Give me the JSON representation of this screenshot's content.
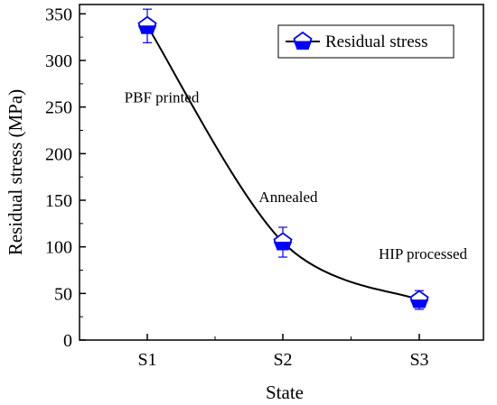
{
  "chart_data": {
    "type": "scatter",
    "title": "",
    "xlabel": "State",
    "ylabel": "Residual stress (MPa)",
    "categories": [
      "S1",
      "S2",
      "S3"
    ],
    "ylim": [
      0,
      360
    ],
    "yticks": [
      0,
      50,
      100,
      150,
      200,
      250,
      300,
      350
    ],
    "series": [
      {
        "name": "Residual stress",
        "values": [
          337,
          105,
          43
        ],
        "errors": [
          18,
          16,
          10
        ],
        "color": "#0000ff",
        "marker": "pentagon",
        "fit_line": true
      }
    ],
    "annotations": [
      {
        "text": "PBF printed",
        "category": "S1",
        "y": 255
      },
      {
        "text": "Annealed",
        "category": "S2",
        "y": 148
      },
      {
        "text": "HIP processed",
        "category": "S3",
        "y": 87
      }
    ],
    "legend": "top-right",
    "grid": false
  }
}
